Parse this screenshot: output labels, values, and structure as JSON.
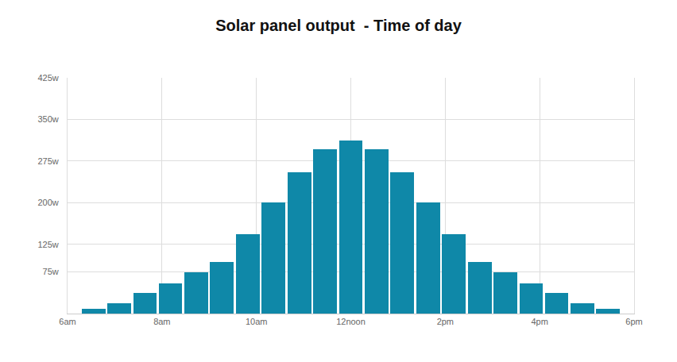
{
  "chart_data": {
    "type": "bar",
    "title": "Solar panel output  - Time of day",
    "x": [
      6.55,
      7.09,
      7.64,
      8.18,
      8.73,
      9.27,
      9.82,
      10.36,
      10.91,
      11.45,
      12,
      12.55,
      13.09,
      13.64,
      14.18,
      14.73,
      15.27,
      15.82,
      16.36,
      16.91,
      17.45
    ],
    "values": [
      9,
      18,
      37,
      54,
      74,
      93,
      143,
      200,
      255,
      296,
      312,
      296,
      255,
      200,
      143,
      93,
      74,
      54,
      37,
      18,
      9
    ],
    "color": "#0f88a8",
    "xlim": [
      6,
      18
    ],
    "xticks": [
      {
        "value": 6,
        "label": "6am"
      },
      {
        "value": 8,
        "label": "8am"
      },
      {
        "value": 10,
        "label": "10am"
      },
      {
        "value": 12,
        "label": "12noon"
      },
      {
        "value": 14,
        "label": "2pm"
      },
      {
        "value": 16,
        "label": "4pm"
      },
      {
        "value": 18,
        "label": "6pm"
      }
    ],
    "ylim": [
      0,
      425
    ],
    "yticks": [
      {
        "value": 75,
        "label": "75w"
      },
      {
        "value": 125,
        "label": "125w"
      },
      {
        "value": 200,
        "label": "200w"
      },
      {
        "value": 275,
        "label": "275w"
      },
      {
        "value": 350,
        "label": "350w"
      },
      {
        "value": 425,
        "label": "425w"
      }
    ],
    "grid": true
  }
}
